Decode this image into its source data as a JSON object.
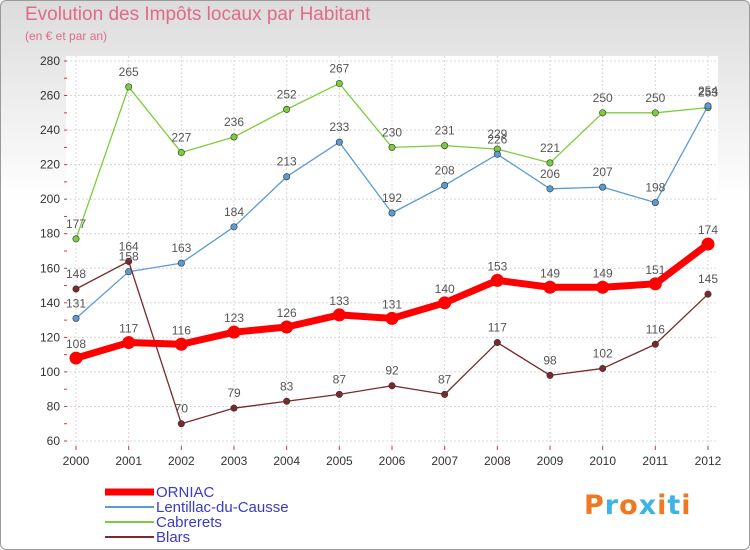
{
  "chart_data": {
    "type": "line",
    "title": "Evolution des Impôts locaux par Habitant",
    "subtitle": "(en € et par an)",
    "categories": [
      "2000",
      "2001",
      "2002",
      "2003",
      "2004",
      "2005",
      "2006",
      "2007",
      "2008",
      "2009",
      "2010",
      "2011",
      "2012"
    ],
    "ylim": [
      60,
      280
    ],
    "yticks": [
      60,
      80,
      100,
      120,
      140,
      160,
      180,
      200,
      220,
      240,
      260,
      280
    ],
    "grid": true,
    "legend_position": "bottom-left",
    "series": [
      {
        "name": "ORNIAC",
        "color": "#ff0000",
        "values": [
          108,
          117,
          116,
          123,
          126,
          133,
          131,
          140,
          153,
          149,
          149,
          151,
          174
        ]
      },
      {
        "name": "Lentillac-du-Causse",
        "color": "#5b9bd5",
        "values": [
          131,
          158,
          163,
          184,
          213,
          233,
          192,
          208,
          226,
          206,
          207,
          198,
          254
        ]
      },
      {
        "name": "Cabrerets",
        "color": "#7ccd3b",
        "values": [
          177,
          265,
          227,
          236,
          252,
          267,
          230,
          231,
          229,
          221,
          250,
          250,
          253
        ]
      },
      {
        "name": "Blars",
        "color": "#7a2a2a",
        "values": [
          148,
          164,
          70,
          79,
          83,
          87,
          92,
          87,
          117,
          98,
          102,
          116,
          145
        ]
      }
    ]
  },
  "logo_text": "Proxiti",
  "logo_colors": [
    "#f07820",
    "#3cb4e6",
    "#f07820",
    "#3cb4e6",
    "#f07820",
    "#3cb4e6",
    "#f07820"
  ]
}
